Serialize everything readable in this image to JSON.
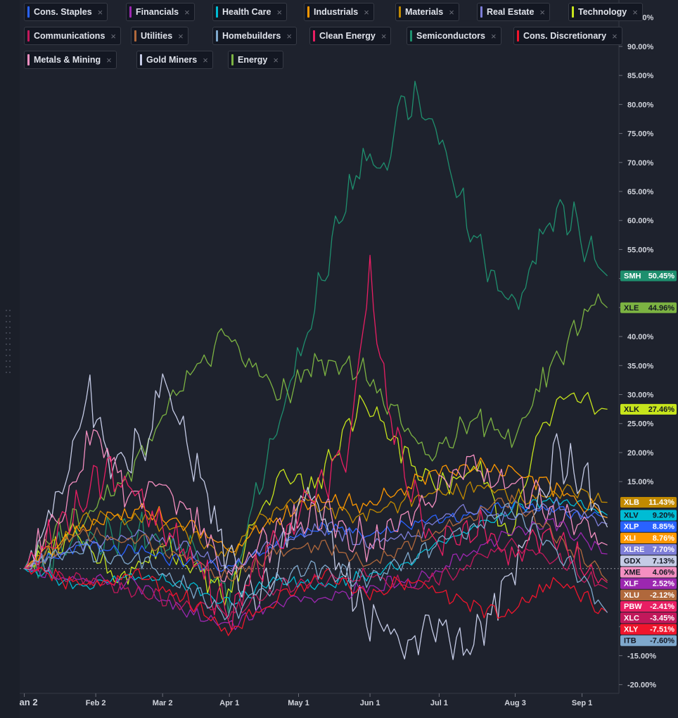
{
  "legend": [
    {
      "label": "Cons. Staples",
      "color": "#2962ff"
    },
    {
      "label": "Financials",
      "color": "#9c27b0"
    },
    {
      "label": "Health Care",
      "color": "#00bcd4"
    },
    {
      "label": "Industrials",
      "color": "#ff9800"
    },
    {
      "label": "Materials",
      "color": "#c28a00"
    },
    {
      "label": "Real Estate",
      "color": "#7e7ed8"
    },
    {
      "label": "Technology",
      "color": "#c6e41c"
    },
    {
      "label": "Communications",
      "color": "#c2185b"
    },
    {
      "label": "Utilities",
      "color": "#b0683c"
    },
    {
      "label": "Homebuilders",
      "color": "#7fa8cc"
    },
    {
      "label": "Clean Energy",
      "color": "#e91e63"
    },
    {
      "label": "Semiconductors",
      "color": "#1e8f6e"
    },
    {
      "label": "Cons. Discretionary",
      "color": "#f0152c"
    },
    {
      "label": "Metals & Mining",
      "color": "#f48fc1"
    },
    {
      "label": "Gold Miners",
      "color": "#c5cbe6"
    },
    {
      "label": "Energy",
      "color": "#7cb342"
    }
  ],
  "close_glyph": "×",
  "chart_data": {
    "type": "line",
    "ytick_labels": [
      "95.00%",
      "90.00%",
      "85.00%",
      "80.00%",
      "75.00%",
      "70.00%",
      "65.00%",
      "60.00%",
      "55.00%",
      "50.00%",
      "45.00%",
      "40.00%",
      "35.00%",
      "30.00%",
      "25.00%",
      "20.00%",
      "15.00%",
      "-10.00%",
      "-15.00%",
      "-20.00%"
    ],
    "ytick_values": [
      95,
      90,
      85,
      80,
      75,
      70,
      65,
      60,
      55,
      50,
      45,
      40,
      35,
      30,
      25,
      20,
      15,
      -10,
      -15,
      -20
    ],
    "ylim": [
      -21.5,
      98
    ],
    "xtick_labels": [
      "an 2",
      "Feb 2",
      "Mar 2",
      "Apr 1",
      "May 1",
      "Jun 1",
      "Jul 1",
      "Aug 3",
      "Sep 1"
    ],
    "xtick_days": [
      0,
      31,
      60,
      89,
      119,
      150,
      180,
      213,
      242
    ],
    "xlim": [
      -2,
      258
    ],
    "end_day": 253,
    "series": [
      {
        "ticker": "SMH",
        "value": "50.45%",
        "end": 50.45,
        "color": "#1e8f6e",
        "badge_text": "#ffffff",
        "peak": 84,
        "vol": 2.6,
        "anchors": [
          [
            0,
            0
          ],
          [
            25,
            5
          ],
          [
            50,
            6
          ],
          [
            72,
            3
          ],
          [
            89,
            -4
          ],
          [
            100,
            12
          ],
          [
            112,
            28
          ],
          [
            122,
            40
          ],
          [
            135,
            58
          ],
          [
            147,
            72
          ],
          [
            155,
            68
          ],
          [
            165,
            80
          ],
          [
            178,
            78
          ],
          [
            186,
            66
          ],
          [
            200,
            52
          ],
          [
            214,
            44
          ],
          [
            224,
            58
          ],
          [
            234,
            62
          ],
          [
            244,
            56
          ],
          [
            253,
            50.45
          ]
        ]
      },
      {
        "ticker": "XLE",
        "value": "44.96%",
        "end": 44.96,
        "color": "#7cb342",
        "badge_text": "#131722",
        "peak": null,
        "vol": 1.8,
        "anchors": [
          [
            0,
            0
          ],
          [
            20,
            8
          ],
          [
            45,
            16
          ],
          [
            60,
            26
          ],
          [
            72,
            33
          ],
          [
            86,
            40
          ],
          [
            98,
            36
          ],
          [
            112,
            30
          ],
          [
            128,
            36
          ],
          [
            148,
            34
          ],
          [
            162,
            26
          ],
          [
            176,
            20
          ],
          [
            198,
            26
          ],
          [
            212,
            22
          ],
          [
            226,
            33
          ],
          [
            238,
            40
          ],
          [
            248,
            47
          ],
          [
            253,
            44.96
          ]
        ]
      },
      {
        "ticker": "XLK",
        "value": "27.46%",
        "end": 27.46,
        "color": "#c6e41c",
        "badge_text": "#131722",
        "peak": null,
        "vol": 1.6,
        "anchors": [
          [
            0,
            0
          ],
          [
            22,
            6
          ],
          [
            40,
            -2
          ],
          [
            60,
            4
          ],
          [
            80,
            -2
          ],
          [
            89,
            -5
          ],
          [
            100,
            8
          ],
          [
            112,
            16
          ],
          [
            126,
            14
          ],
          [
            148,
            30
          ],
          [
            160,
            22
          ],
          [
            178,
            14
          ],
          [
            198,
            18
          ],
          [
            210,
            4
          ],
          [
            222,
            22
          ],
          [
            234,
            30
          ],
          [
            244,
            28
          ],
          [
            253,
            27.46
          ]
        ]
      },
      {
        "ticker": "XLB",
        "value": "11.43%",
        "end": 11.43,
        "color": "#c28a00",
        "badge_text": "#ffffff",
        "peak": null,
        "vol": 1.1,
        "anchors": [
          [
            0,
            0
          ],
          [
            25,
            8
          ],
          [
            50,
            9
          ],
          [
            70,
            6
          ],
          [
            89,
            2
          ],
          [
            100,
            8
          ],
          [
            120,
            12
          ],
          [
            140,
            9
          ],
          [
            160,
            11
          ],
          [
            180,
            13
          ],
          [
            200,
            14
          ],
          [
            220,
            12
          ],
          [
            240,
            13
          ],
          [
            253,
            11.43
          ]
        ]
      },
      {
        "ticker": "XLV",
        "value": "9.20%",
        "end": 9.2,
        "color": "#00bcd4",
        "badge_text": "#131722",
        "peak": null,
        "vol": 0.8,
        "anchors": [
          [
            0,
            0
          ],
          [
            25,
            -3
          ],
          [
            50,
            -1
          ],
          [
            70,
            -3
          ],
          [
            89,
            -6
          ],
          [
            110,
            -2
          ],
          [
            130,
            -3
          ],
          [
            150,
            -1
          ],
          [
            170,
            2
          ],
          [
            190,
            6
          ],
          [
            210,
            10
          ],
          [
            230,
            12
          ],
          [
            253,
            9.2
          ]
        ]
      },
      {
        "ticker": "XLP",
        "value": "8.85%",
        "end": 8.85,
        "color": "#2962ff",
        "badge_text": "#ffffff",
        "peak": null,
        "vol": 0.8,
        "anchors": [
          [
            0,
            0
          ],
          [
            25,
            4
          ],
          [
            50,
            3
          ],
          [
            70,
            1
          ],
          [
            89,
            0
          ],
          [
            110,
            4
          ],
          [
            130,
            7
          ],
          [
            150,
            6
          ],
          [
            170,
            8
          ],
          [
            190,
            9
          ],
          [
            210,
            11
          ],
          [
            230,
            10
          ],
          [
            253,
            8.85
          ]
        ]
      },
      {
        "ticker": "XLI",
        "value": "8.76%",
        "end": 8.76,
        "color": "#ff9800",
        "badge_text": "#ffffff",
        "peak": null,
        "vol": 1.1,
        "anchors": [
          [
            0,
            0
          ],
          [
            25,
            7
          ],
          [
            50,
            10
          ],
          [
            70,
            8
          ],
          [
            89,
            3
          ],
          [
            110,
            9
          ],
          [
            130,
            12
          ],
          [
            150,
            11
          ],
          [
            170,
            15
          ],
          [
            190,
            18
          ],
          [
            210,
            17
          ],
          [
            230,
            14
          ],
          [
            253,
            8.76
          ]
        ]
      },
      {
        "ticker": "XLRE",
        "value": "7.70%",
        "end": 7.7,
        "color": "#7e7ed8",
        "badge_text": "#ffffff",
        "peak": null,
        "vol": 1.0,
        "anchors": [
          [
            0,
            0
          ],
          [
            25,
            4
          ],
          [
            50,
            6
          ],
          [
            70,
            4
          ],
          [
            89,
            0
          ],
          [
            110,
            5
          ],
          [
            130,
            7
          ],
          [
            150,
            4
          ],
          [
            170,
            6
          ],
          [
            190,
            10
          ],
          [
            210,
            9
          ],
          [
            230,
            11
          ],
          [
            253,
            7.7
          ]
        ]
      },
      {
        "ticker": "GDX",
        "value": "7.13%",
        "end": 7.13,
        "color": "#c5cbe6",
        "badge_text": "#131722",
        "peak": null,
        "vol": 3.0,
        "anchors": [
          [
            0,
            0
          ],
          [
            20,
            18
          ],
          [
            28,
            30
          ],
          [
            40,
            16
          ],
          [
            55,
            24
          ],
          [
            60,
            34
          ],
          [
            75,
            18
          ],
          [
            89,
            2
          ],
          [
            100,
            -8
          ],
          [
            112,
            4
          ],
          [
            124,
            14
          ],
          [
            135,
            2
          ],
          [
            150,
            -8
          ],
          [
            165,
            -12
          ],
          [
            180,
            -8
          ],
          [
            190,
            -15
          ],
          [
            205,
            -6
          ],
          [
            218,
            6
          ],
          [
            232,
            20
          ],
          [
            244,
            14
          ],
          [
            253,
            7.13
          ]
        ]
      },
      {
        "ticker": "XME",
        "value": "4.06%",
        "end": 4.06,
        "color": "#f48fc1",
        "badge_text": "#131722",
        "peak": null,
        "vol": 2.4,
        "anchors": [
          [
            0,
            0
          ],
          [
            20,
            12
          ],
          [
            30,
            24
          ],
          [
            45,
            12
          ],
          [
            60,
            15
          ],
          [
            75,
            8
          ],
          [
            89,
            -2
          ],
          [
            110,
            6
          ],
          [
            130,
            10
          ],
          [
            150,
            4
          ],
          [
            170,
            10
          ],
          [
            190,
            18
          ],
          [
            210,
            14
          ],
          [
            230,
            10
          ],
          [
            253,
            4.06
          ]
        ]
      },
      {
        "ticker": "XLF",
        "value": "2.52%",
        "end": 2.52,
        "color": "#9c27b0",
        "badge_text": "#ffffff",
        "peak": null,
        "vol": 0.9,
        "anchors": [
          [
            0,
            0
          ],
          [
            25,
            -2
          ],
          [
            50,
            -3
          ],
          [
            70,
            -7
          ],
          [
            89,
            -10
          ],
          [
            110,
            -6
          ],
          [
            130,
            -5
          ],
          [
            150,
            -3
          ],
          [
            170,
            -2
          ],
          [
            190,
            2
          ],
          [
            210,
            6
          ],
          [
            230,
            8
          ],
          [
            253,
            2.52
          ]
        ]
      },
      {
        "ticker": "XLU",
        "value": "-2.12%",
        "end": -2.12,
        "color": "#b0683c",
        "badge_text": "#ffffff",
        "peak": null,
        "vol": 1.0,
        "anchors": [
          [
            0,
            0
          ],
          [
            25,
            6
          ],
          [
            50,
            5
          ],
          [
            70,
            2
          ],
          [
            89,
            -2
          ],
          [
            110,
            3
          ],
          [
            130,
            4
          ],
          [
            150,
            1
          ],
          [
            170,
            5
          ],
          [
            190,
            8
          ],
          [
            210,
            12
          ],
          [
            230,
            6
          ],
          [
            253,
            -2.12
          ]
        ]
      },
      {
        "ticker": "PBW",
        "value": "-2.41%",
        "end": -2.41,
        "color": "#e91e63",
        "badge_text": "#ffffff",
        "peak": 54,
        "vol": 2.6,
        "anchors": [
          [
            0,
            0
          ],
          [
            20,
            10
          ],
          [
            35,
            16
          ],
          [
            50,
            12
          ],
          [
            70,
            4
          ],
          [
            89,
            -8
          ],
          [
            105,
            2
          ],
          [
            122,
            10
          ],
          [
            140,
            20
          ],
          [
            150,
            50
          ],
          [
            158,
            28
          ],
          [
            168,
            14
          ],
          [
            180,
            4
          ],
          [
            195,
            8
          ],
          [
            210,
            2
          ],
          [
            225,
            6
          ],
          [
            240,
            3
          ],
          [
            253,
            -2.41
          ]
        ]
      },
      {
        "ticker": "XLC",
        "value": "-3.45%",
        "end": -3.45,
        "color": "#c2185b",
        "badge_text": "#ffffff",
        "peak": null,
        "vol": 1.0,
        "anchors": [
          [
            0,
            0
          ],
          [
            25,
            -2
          ],
          [
            50,
            -4
          ],
          [
            70,
            -6
          ],
          [
            89,
            -8
          ],
          [
            110,
            -3
          ],
          [
            130,
            -2
          ],
          [
            150,
            -1
          ],
          [
            170,
            -3
          ],
          [
            190,
            0
          ],
          [
            210,
            4
          ],
          [
            230,
            2
          ],
          [
            253,
            -3.45
          ]
        ]
      },
      {
        "ticker": "XLY",
        "value": "-7.51%",
        "end": -7.51,
        "color": "#f0152c",
        "badge_text": "#ffffff",
        "peak": null,
        "vol": 1.0,
        "anchors": [
          [
            0,
            0
          ],
          [
            25,
            -3
          ],
          [
            50,
            -1
          ],
          [
            70,
            -5
          ],
          [
            89,
            -11
          ],
          [
            110,
            -5
          ],
          [
            130,
            -1
          ],
          [
            150,
            -4
          ],
          [
            170,
            -2
          ],
          [
            190,
            -6
          ],
          [
            210,
            -8
          ],
          [
            230,
            -2
          ],
          [
            253,
            -7.51
          ]
        ]
      },
      {
        "ticker": "ITB",
        "value": "-7.60%",
        "end": -7.6,
        "color": "#7fa8cc",
        "badge_text": "#131722",
        "peak": null,
        "vol": 1.2,
        "anchors": [
          [
            0,
            0
          ],
          [
            25,
            3
          ],
          [
            50,
            2
          ],
          [
            70,
            -3
          ],
          [
            89,
            -8
          ],
          [
            110,
            -2
          ],
          [
            130,
            0
          ],
          [
            150,
            -2
          ],
          [
            170,
            2
          ],
          [
            190,
            6
          ],
          [
            210,
            10
          ],
          [
            230,
            4
          ],
          [
            253,
            -7.6
          ]
        ]
      }
    ]
  }
}
